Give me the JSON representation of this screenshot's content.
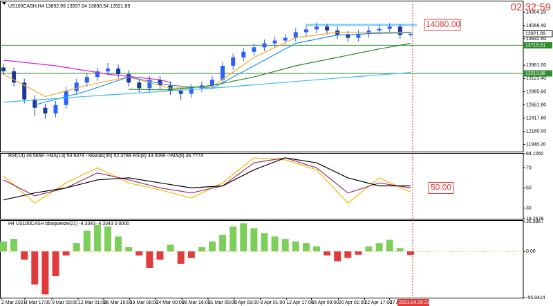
{
  "chart_data": [
    {
      "type": "candlestick",
      "title": "US100CASH,H4  13892.99 13937.04 13890.54 13921.89",
      "clock": "02:32:59",
      "ylim": [
        11830,
        14450
      ],
      "yticks": [
        {
          "value": 14304.2,
          "label": "14304.20"
        },
        {
          "value": 14066.4,
          "label": "14066.40"
        },
        {
          "value": 13832.6,
          "label": "13832.60"
        },
        {
          "value": 13361,
          "label": "13361.00"
        },
        {
          "value": 13123.4,
          "label": "13123.40"
        },
        {
          "value": 12885.6,
          "label": "12885.60"
        },
        {
          "value": 12651.8,
          "label": "12651.80"
        },
        {
          "value": 12417.8,
          "label": "12417.80"
        },
        {
          "value": 12180,
          "label": "12180.00"
        },
        {
          "value": 11946.2,
          "label": "11946.20"
        }
      ],
      "up_color": "#2962ff",
      "down_color": "#1a3a9a",
      "candles": {
        "open": [
          13320,
          13250,
          13050,
          12750,
          12600,
          12500,
          12650,
          12900,
          13050,
          13150,
          13250,
          13300,
          13200,
          13050,
          12950,
          13100,
          13000,
          12900,
          12850,
          12950,
          13000,
          13100,
          13350,
          13500,
          13600,
          13680,
          13750,
          13800,
          13850,
          13950,
          14000,
          14050,
          13980,
          13900,
          13850,
          13920,
          13980,
          14010,
          14050,
          13900
        ],
        "high": [
          13390,
          13320,
          13120,
          12820,
          12670,
          12720,
          12970,
          13120,
          13220,
          13320,
          13400,
          13370,
          13270,
          13120,
          13170,
          13170,
          13070,
          12970,
          13020,
          13070,
          13170,
          13420,
          13570,
          13670,
          13750,
          13820,
          13870,
          13920,
          14020,
          14070,
          14120,
          14100,
          14050,
          13970,
          13990,
          14050,
          14080,
          14110,
          14100,
          13960
        ],
        "low": [
          13180,
          12980,
          12680,
          12450,
          12400,
          12430,
          12580,
          12830,
          12980,
          13080,
          13180,
          13130,
          12980,
          12880,
          12880,
          12930,
          12830,
          12740,
          12780,
          12880,
          12930,
          13030,
          13280,
          13430,
          13530,
          13610,
          13680,
          13730,
          13780,
          13880,
          13930,
          13910,
          13830,
          13780,
          13780,
          13850,
          13910,
          13940,
          13830,
          13860
        ],
        "close": [
          13250,
          13050,
          12750,
          12600,
          12500,
          12650,
          12900,
          13050,
          13150,
          13250,
          13300,
          13200,
          13050,
          12950,
          13100,
          13000,
          12900,
          12850,
          12950,
          13000,
          13100,
          13350,
          13500,
          13600,
          13680,
          13750,
          13800,
          13850,
          13950,
          14000,
          14050,
          13980,
          13900,
          13850,
          13920,
          13980,
          14010,
          14050,
          13900,
          13921.89
        ]
      },
      "lines": [
        {
          "color": "#f5a623",
          "x": [
            0,
            4,
            8,
            12,
            16,
            20,
            24,
            28,
            32,
            36,
            39
          ],
          "values": [
            13200,
            12800,
            13000,
            13150,
            12950,
            12980,
            13500,
            13850,
            13950,
            13950,
            13950
          ]
        },
        {
          "color": "#1e90ff",
          "x": [
            3,
            8,
            12,
            16,
            20,
            24,
            28,
            32,
            36,
            39
          ],
          "values": [
            12650,
            12900,
            13150,
            13000,
            12950,
            13350,
            13750,
            13900,
            13930,
            13940
          ]
        },
        {
          "color": "#d020d0",
          "x": [
            0,
            5,
            10,
            15,
            16
          ],
          "values": [
            13450,
            13350,
            13200,
            13100,
            13050
          ]
        },
        {
          "color": "#228b22",
          "x": [
            12,
            16,
            20,
            24,
            28,
            32,
            36,
            39
          ],
          "values": [
            12930,
            12920,
            13000,
            13150,
            13350,
            13500,
            13650,
            13750
          ]
        },
        {
          "color": "#40b8f0",
          "x": [
            0,
            10,
            20,
            30,
            39
          ],
          "values": [
            12700,
            12830,
            12950,
            13100,
            13230
          ]
        }
      ],
      "levels": [
        {
          "value": 13715.61,
          "color": "#2e8b2e"
        },
        {
          "value": 13213.88,
          "color": "#2e8b2e"
        }
      ],
      "last": 13921.89,
      "resistance": {
        "value": 14080,
        "label": "14080.00",
        "color": "#87cefa"
      }
    },
    {
      "type": "line",
      "title": "RSI(14) 46.5668 ->MA(13) 50.9374 ->Bands(35) 52.3788 RSI(8) 43.0099 ->MA(8) 46.7774",
      "ylim": [
        19.2678,
        84.105
      ],
      "yticks": [
        {
          "value": 84.105,
          "label": "84.1050"
        },
        70,
        50,
        30,
        {
          "value": 19.2678,
          "label": "19.2678"
        }
      ],
      "x": [
        0,
        3,
        6,
        9,
        12,
        15,
        18,
        21,
        24,
        27,
        30,
        33,
        36,
        39
      ],
      "series": [
        {
          "color": "#f5b800",
          "values": [
            62,
            35,
            55,
            70,
            55,
            48,
            40,
            55,
            80,
            78,
            68,
            35,
            60,
            46
          ]
        },
        {
          "color": "#9b2d6f",
          "values": [
            58,
            42,
            50,
            65,
            58,
            50,
            45,
            52,
            75,
            80,
            70,
            45,
            55,
            50
          ]
        },
        {
          "color": "#000000",
          "values": [
            38,
            45,
            50,
            58,
            60,
            55,
            50,
            52,
            68,
            80,
            75,
            60,
            52,
            52
          ]
        }
      ],
      "level": {
        "value": 50,
        "label": "50.00"
      }
    },
    {
      "type": "bar",
      "title": "H4 US100CASH bbsqueeze(21) -4.3343 -4.3343 0.0000",
      "ylim": [
        -55.9414,
        35.9967
      ],
      "yticks": [
        {
          "value": 35.9967,
          "label": "35.9967"
        },
        {
          "value": 0,
          "label": "0.00"
        },
        {
          "value": -55.9414,
          "label": "-55.9414"
        }
      ],
      "values": [
        12,
        15,
        -10,
        -40,
        -52,
        -30,
        -5,
        10,
        25,
        32,
        30,
        18,
        5,
        -5,
        -20,
        -10,
        8,
        -15,
        -8,
        5,
        12,
        20,
        30,
        34,
        28,
        22,
        18,
        15,
        12,
        10,
        6,
        -5,
        -12,
        -8,
        -4,
        6,
        10,
        14,
        4,
        -4.3343
      ],
      "pos_color": "#7ccf5a",
      "neg_color": "#e03c3c",
      "xticks": [
        {
          "value": -0.2,
          "label": "2 Mar 2021"
        },
        {
          "value": 2.05,
          "label": "4 Mar 17:00"
        },
        {
          "value": 4.64,
          "label": "9 Mar 09:00"
        },
        {
          "value": 7.15,
          "label": "12 Mar 01:00"
        },
        {
          "value": 9.6,
          "label": "16 Mar 16:00"
        },
        {
          "value": 12.1,
          "label": "19 Mar 08:00"
        },
        {
          "value": 14.6,
          "label": "24 Mar 00:00"
        },
        {
          "value": 17.1,
          "label": "26 Mar 16:00"
        },
        {
          "value": 19.6,
          "label": "31 Mar 09:00"
        },
        {
          "value": 22.1,
          "label": "5 Apr 09:00"
        },
        {
          "value": 24.6,
          "label": "8 Apr 01:00"
        },
        {
          "value": 27.1,
          "label": "12 Apr 17:00"
        },
        {
          "value": 29.5,
          "label": "15 Apr 09:00"
        },
        {
          "value": 32.1,
          "label": "20 Apr 01:00"
        },
        {
          "value": 34.6,
          "label": "22 Apr 17:00"
        },
        {
          "value": 37,
          "label": "27 Apr 13:00"
        }
      ],
      "cursor": {
        "value": 39.2,
        "label": "2021.04.29 21:00"
      }
    }
  ]
}
